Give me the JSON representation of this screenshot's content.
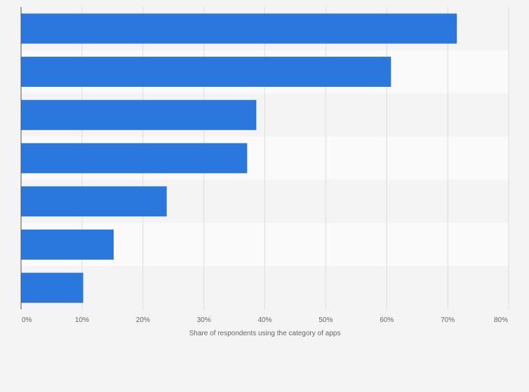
{
  "chart_data": {
    "type": "bar",
    "orientation": "horizontal",
    "title": "",
    "xlabel": "Share of respondents using the category of apps",
    "ylabel": "",
    "categories": [
      "",
      "",
      "",
      "",
      "",
      "",
      ""
    ],
    "values": [
      71.5,
      60.7,
      38.6,
      37.1,
      23.9,
      15.2,
      10.2
    ],
    "value_unit": "%",
    "xlim": [
      0,
      80
    ],
    "x_ticks": [
      {
        "value": 0,
        "label": "0%"
      },
      {
        "value": 10,
        "label": "10%"
      },
      {
        "value": 20,
        "label": "20%"
      },
      {
        "value": 30,
        "label": "30%"
      },
      {
        "value": 40,
        "label": "40%"
      },
      {
        "value": 50,
        "label": "50%"
      },
      {
        "value": 60,
        "label": "60%"
      },
      {
        "value": 70,
        "label": "70%"
      },
      {
        "value": 80,
        "label": "80%"
      }
    ],
    "grid": true,
    "legend": "none",
    "colors": {
      "bar": "#2a77de",
      "background": "#f4f4f4",
      "band_light": "#fafafa",
      "band_dark": "#f4f4f4",
      "grid": "#dddddd",
      "axis": "#555555",
      "tick_text": "#666666"
    }
  }
}
